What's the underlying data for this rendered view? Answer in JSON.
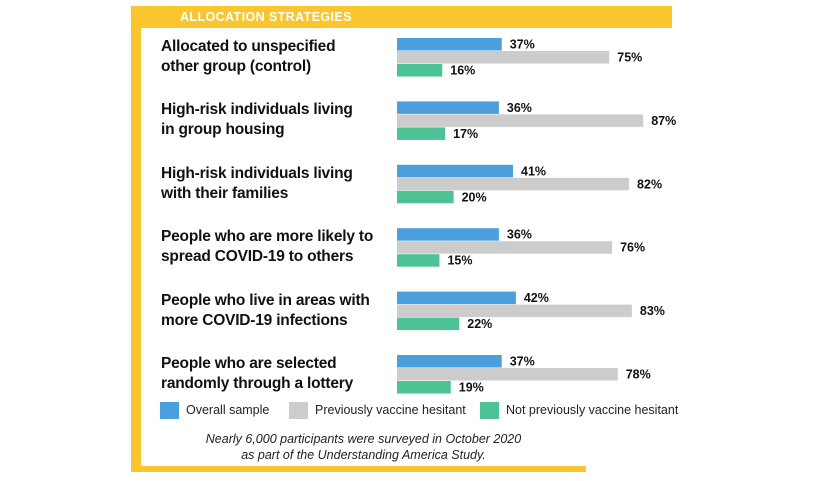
{
  "header": {
    "title": "ALLOCATION STRATEGIES"
  },
  "colors": {
    "frame": "#fbc52d",
    "overall": "#4a9fdc",
    "hesitant": "#cccccc",
    "not_hesitant": "#4dc294"
  },
  "chart_data": {
    "type": "bar",
    "orientation": "horizontal",
    "title": "ALLOCATION STRATEGIES",
    "categories": [
      {
        "lines": [
          "Allocated to unspecified",
          "other group (control)"
        ]
      },
      {
        "lines": [
          "High-risk individuals living",
          "in group housing"
        ]
      },
      {
        "lines": [
          "High-risk individuals living",
          "with their families"
        ]
      },
      {
        "lines": [
          "People who are more likely to",
          "spread COVID-19 to others"
        ]
      },
      {
        "lines": [
          "People who live in areas with",
          "more COVID-19 infections"
        ]
      },
      {
        "lines": [
          "People who are selected",
          "randomly through a lottery"
        ]
      }
    ],
    "series": [
      {
        "name": "Overall sample",
        "color": "#4a9fdc",
        "values": [
          37,
          36,
          41,
          36,
          42,
          37
        ],
        "labels": [
          "37%",
          "36%",
          "41%",
          "36%",
          "42%",
          "37%"
        ]
      },
      {
        "name": "Previously vaccine hesitant",
        "color": "#cccccc",
        "values": [
          75,
          87,
          82,
          76,
          83,
          78
        ],
        "labels": [
          "75%",
          "87%",
          "82%",
          "76%",
          "83%",
          "78%"
        ]
      },
      {
        "name": "Not previously vaccine hesitant",
        "color": "#4dc294",
        "values": [
          16,
          17,
          20,
          15,
          22,
          19
        ],
        "labels": [
          "16%",
          "17%",
          "20%",
          "15%",
          "22%",
          "19%"
        ]
      }
    ],
    "unit": "%",
    "xlim": [
      0,
      100
    ],
    "grid": false,
    "legend_position": "bottom"
  },
  "legend": {
    "items": [
      {
        "label": "Overall sample",
        "color": "#4a9fdc"
      },
      {
        "label": "Previously vaccine hesitant",
        "color": "#cccccc"
      },
      {
        "label": "Not previously vaccine hesitant",
        "color": "#4dc294"
      }
    ]
  },
  "footnote": {
    "line1": "Nearly 6,000 participants were surveyed in October 2020",
    "line2": "as part of the Understanding America Study."
  }
}
